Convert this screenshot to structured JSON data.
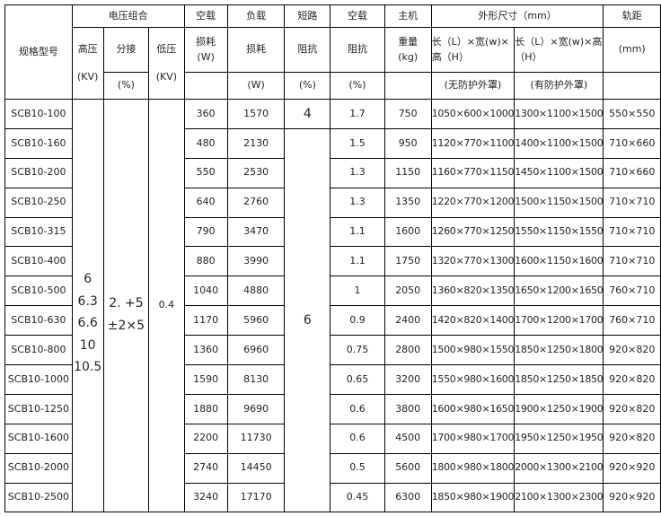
{
  "header": {
    "model": "规格型号",
    "voltage_group": "电压组合",
    "hv": "高压",
    "hv_unit": "(KV)",
    "tap": "分接",
    "tap_unit": "(%)",
    "lv": "低压",
    "lv_unit": "(KV)",
    "noload_loss_1": "空载",
    "noload_loss_2": "损耗",
    "noload_loss_unit": "(W)",
    "load_loss_1": "负载",
    "load_loss_2": "损耗",
    "load_loss_unit": "(W)",
    "sc_imp_1": "短路",
    "sc_imp_2": "阻抗",
    "sc_imp_unit": "(%)",
    "nl_imp_1": "空载",
    "nl_imp_2": "阻抗",
    "nl_imp_unit": "(%)",
    "weight_1": "主机",
    "weight_2": "重量",
    "weight_unit": "(kg)",
    "dims": "外形尺寸（mm）",
    "dims_a": "长（L）×宽(w)×高（H）",
    "dims_a_note": "(无防护外罩)",
    "dims_b": "长（L）×宽(w)×高（H）",
    "dims_b_note": "(有防护外罩)",
    "gauge": "轨距",
    "gauge_unit": "(mm)"
  },
  "merged": {
    "hv_values": [
      "6",
      "6.3",
      "6.6",
      "10",
      "10.5"
    ],
    "tap_values": [
      "2. +5",
      "±2×5"
    ],
    "lv_value": "0.4",
    "sc_imp_first": "4",
    "sc_imp_rest": "6"
  },
  "rows": [
    {
      "model": "SCB10-100",
      "nl": "360",
      "ll": "1570",
      "ni": "1.7",
      "w": "750",
      "da": "1050×600×1000",
      "db": "1300×1100×1500",
      "g": "550×550"
    },
    {
      "model": "SCB10-160",
      "nl": "480",
      "ll": "2130",
      "ni": "1.5",
      "w": "950",
      "da": "1120×770×1100",
      "db": "1400×1100×1500",
      "g": "710×660"
    },
    {
      "model": "SCB10-200",
      "nl": "550",
      "ll": "2530",
      "ni": "1.3",
      "w": "1150",
      "da": "1160×770×1150",
      "db": "1450×1100×1500",
      "g": "710×660"
    },
    {
      "model": "SCB10-250",
      "nl": "640",
      "ll": "2760",
      "ni": "1.3",
      "w": "1350",
      "da": "1220×770×1200",
      "db": "1500×1150×1500",
      "g": "710×710"
    },
    {
      "model": "SCB10-315",
      "nl": "790",
      "ll": "3470",
      "ni": "1.1",
      "w": "1600",
      "da": "1260×770×1250",
      "db": "1550×1150×1550",
      "g": "710×710"
    },
    {
      "model": "SCB10-400",
      "nl": "880",
      "ll": "3990",
      "ni": "1.1",
      "w": "1750",
      "da": "1320×770×1300",
      "db": "1600×1150×1600",
      "g": "710×710"
    },
    {
      "model": "SCB10-500",
      "nl": "1040",
      "ll": "4880",
      "ni": "1",
      "w": "2050",
      "da": "1360×820×1350",
      "db": "1650×1200×1650",
      "g": "760×710"
    },
    {
      "model": "SCB10-630",
      "nl": "1170",
      "ll": "5960",
      "ni": "0.9",
      "w": "2400",
      "da": "1420×820×1400",
      "db": "1700×1200×1700",
      "g": "760×710"
    },
    {
      "model": "SCB10-800",
      "nl": "1360",
      "ll": "6960",
      "ni": "0.75",
      "w": "2800",
      "da": "1500×980×1550",
      "db": "1850×1250×1800",
      "g": "920×820"
    },
    {
      "model": "SCB10-1000",
      "nl": "1590",
      "ll": "8130",
      "ni": "0.65",
      "w": "3200",
      "da": "1550×980×1600",
      "db": "1850×1250×1850",
      "g": "920×820"
    },
    {
      "model": "SCB10-1250",
      "nl": "1880",
      "ll": "9690",
      "ni": "0.6",
      "w": "3800",
      "da": "1600×980×1650",
      "db": "1900×1250×1900",
      "g": "920×820"
    },
    {
      "model": "SCB10-1600",
      "nl": "2200",
      "ll": "11730",
      "ni": "0.6",
      "w": "4500",
      "da": "1700×980×1700",
      "db": "1950×1250×1950",
      "g": "920×820"
    },
    {
      "model": "SCB10-2000",
      "nl": "2740",
      "ll": "14450",
      "ni": "0.5",
      "w": "5600",
      "da": "1800×980×1800",
      "db": "2000×1300×2100",
      "g": "920×920"
    },
    {
      "model": "SCB10-2500",
      "nl": "3240",
      "ll": "17170",
      "ni": "0.45",
      "w": "6300",
      "da": "1850×980×1900",
      "db": "2100×1300×2300",
      "g": "920×920"
    }
  ]
}
